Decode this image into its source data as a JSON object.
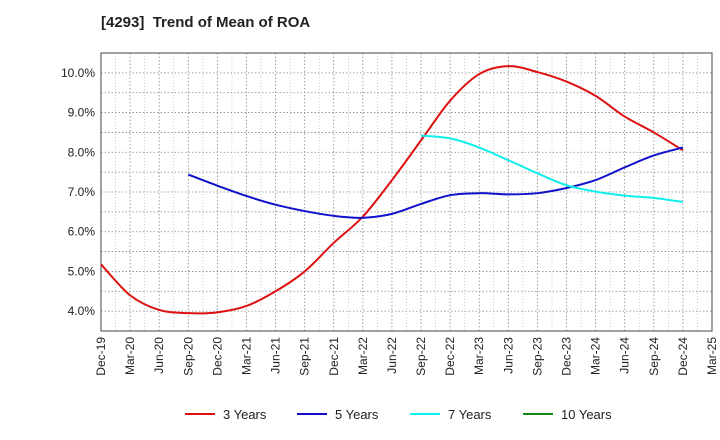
{
  "chart_data": {
    "type": "line",
    "title": "[4293]  Trend of Mean of ROA",
    "xlabel": "",
    "ylabel": "",
    "x_ticks": [
      "Dec-19",
      "Mar-20",
      "Jun-20",
      "Sep-20",
      "Dec-20",
      "Mar-21",
      "Jun-21",
      "Sep-21",
      "Dec-21",
      "Mar-22",
      "Jun-22",
      "Sep-22",
      "Dec-22",
      "Mar-23",
      "Jun-23",
      "Sep-23",
      "Dec-23",
      "Mar-24",
      "Jun-24",
      "Sep-24",
      "Dec-24",
      "Mar-25"
    ],
    "ylim": [
      3.5,
      10.5
    ],
    "y_ticks": [
      4.0,
      5.0,
      6.0,
      7.0,
      8.0,
      9.0,
      10.0
    ],
    "y_tick_labels": [
      "4.0%",
      "5.0%",
      "6.0%",
      "7.0%",
      "8.0%",
      "9.0%",
      "10.0%"
    ],
    "grid": true,
    "legend_position": "bottom",
    "series": [
      {
        "name": "3 Years",
        "color": "#dd1111",
        "x": [
          "Dec-19",
          "Mar-20",
          "Jun-20",
          "Sep-20",
          "Dec-20",
          "Mar-21",
          "Jun-21",
          "Sep-21",
          "Dec-21",
          "Mar-22",
          "Jun-22",
          "Sep-22",
          "Dec-22",
          "Mar-23",
          "Jun-23",
          "Sep-23",
          "Dec-23",
          "Mar-24",
          "Jun-24",
          "Sep-24",
          "Dec-24"
        ],
        "values": [
          5.18,
          4.4,
          4.03,
          3.95,
          3.97,
          4.13,
          4.5,
          5.0,
          5.72,
          6.38,
          7.3,
          8.3,
          9.3,
          9.97,
          10.17,
          10.02,
          9.78,
          9.42,
          8.9,
          8.5,
          8.05
        ]
      },
      {
        "name": "5 Years",
        "color": "#1111cc",
        "x": [
          "Sep-20",
          "Dec-20",
          "Mar-21",
          "Jun-21",
          "Sep-21",
          "Dec-21",
          "Mar-22",
          "Jun-22",
          "Sep-22",
          "Dec-22",
          "Mar-23",
          "Jun-23",
          "Sep-23",
          "Dec-23",
          "Mar-24",
          "Jun-24",
          "Sep-24",
          "Dec-24"
        ],
        "values": [
          7.44,
          7.16,
          6.9,
          6.68,
          6.52,
          6.4,
          6.35,
          6.45,
          6.7,
          6.92,
          6.97,
          6.94,
          6.97,
          7.1,
          7.3,
          7.62,
          7.92,
          8.12
        ]
      },
      {
        "name": "7 Years",
        "color": "#11eeee",
        "x": [
          "Sep-22",
          "Dec-22",
          "Mar-23",
          "Jun-23",
          "Sep-23",
          "Dec-23",
          "Mar-24",
          "Jun-24",
          "Sep-24",
          "Dec-24"
        ],
        "values": [
          8.42,
          8.35,
          8.12,
          7.8,
          7.47,
          7.17,
          7.01,
          6.91,
          6.85,
          6.75
        ]
      },
      {
        "name": "10 Years",
        "color": "#118811",
        "x": [],
        "values": []
      }
    ]
  }
}
